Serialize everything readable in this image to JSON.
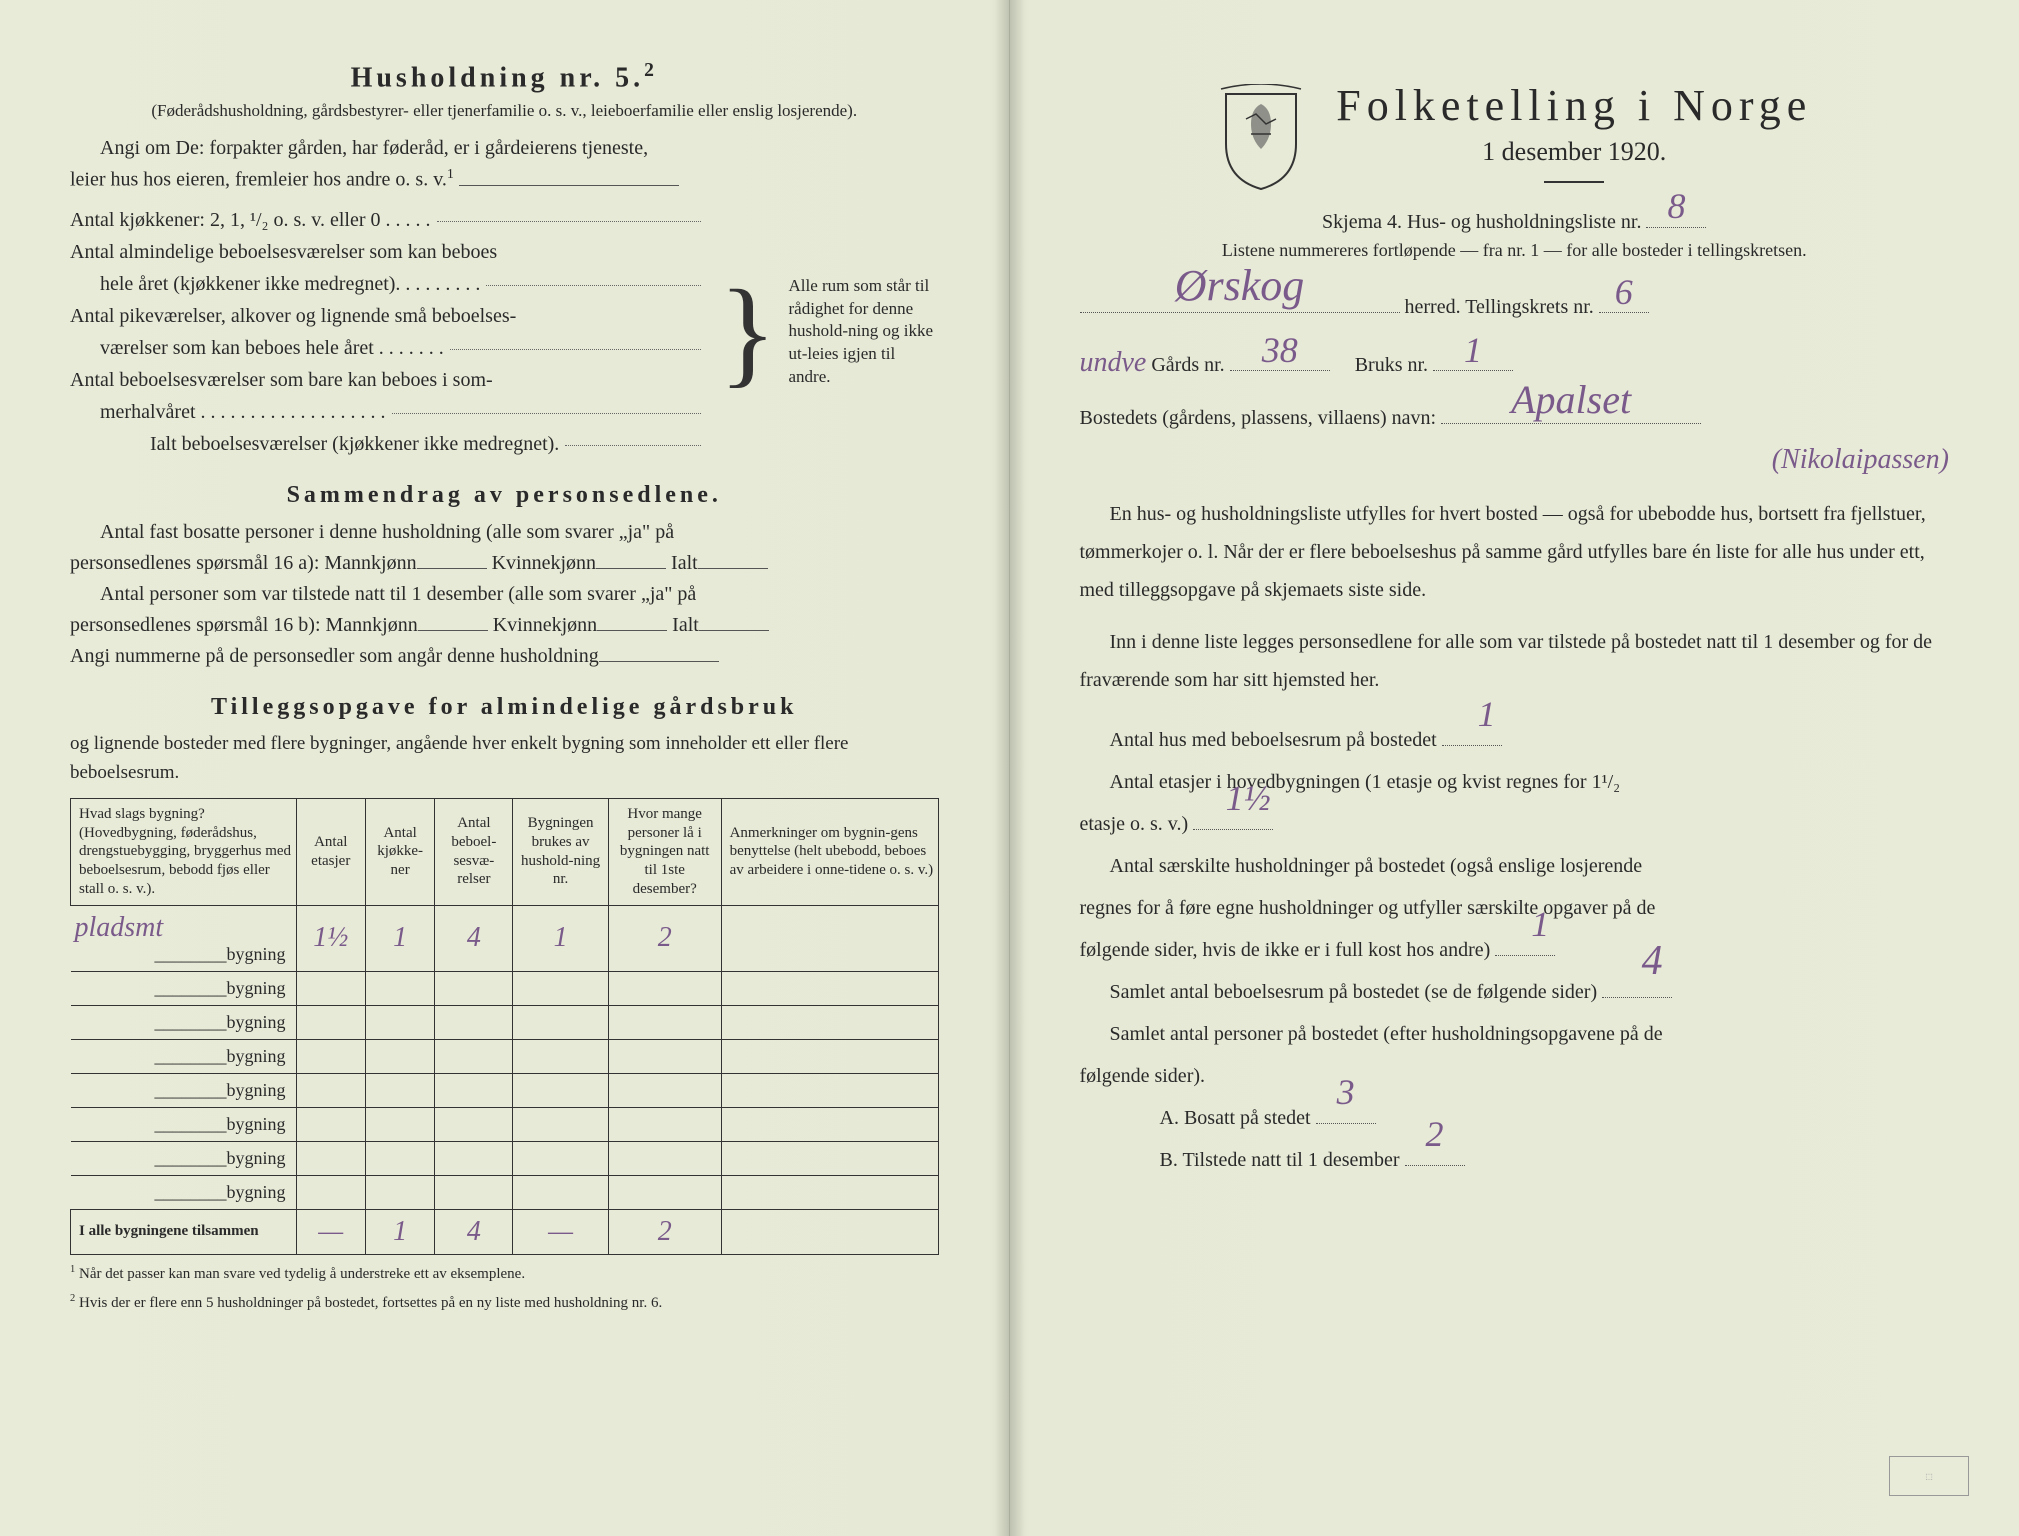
{
  "left": {
    "heading": "Husholdning nr. 5.",
    "heading_sup": "2",
    "sub1": "(Føderådshusholdning, gårdsbestyrer- eller tjenerfamilie o. s. v., leieboerfamilie eller enslig losjerende).",
    "para1a": "Angi om De: forpakter gården, har føderåd, er i gårdeierens tjeneste,",
    "para1b": "leier hus hos eieren, fremleier hos andre o. s. v.",
    "para1b_sup": "1",
    "kitchens": "Antal kjøkkener: 2, 1, ¹/₂ o. s. v. eller 0 . . . . .",
    "rooms1a": "Antal almindelige beboelsesværelser som kan beboes",
    "rooms1b": "hele året (kjøkkener ikke medregnet). . . . . . . . .",
    "rooms2a": "Antal pikeværelser, alkover og lignende små beboelses-",
    "rooms2b": "værelser som kan beboes hele året . . . . . . .",
    "rooms3a": "Antal beboelsesværelser som bare kan beboes i som-",
    "rooms3b": "merhalvåret . . . . . . . . . . . . . . . . . . .",
    "ialt": "Ialt beboelsesværelser (kjøkkener ikke medregnet).",
    "brace_text": "Alle rum som står til rådighet for denne hushold-ning og ikke ut-leies igjen til andre.",
    "section2_title": "Sammendrag av personsedlene.",
    "s2_l1": "Antal fast bosatte personer i denne husholdning (alle som svarer „ja\" på",
    "s2_l2a": "personsedlenes spørsmål 16 a): Mannkjønn",
    "s2_l2b": "Kvinnekjønn",
    "s2_l2c": "Ialt",
    "s2_l3": "Antal personer som var tilstede natt til 1 desember (alle som svarer „ja\" på",
    "s2_l4a": "personsedlenes spørsmål 16 b): Mannkjønn",
    "s2_l5": "Angi nummerne på de personsedler som angår denne husholdning",
    "section3_title": "Tilleggsopgave for almindelige gårdsbruk",
    "s3_sub": "og lignende bosteder med flere bygninger, angående hver enkelt bygning som inneholder ett eller flere beboelsesrum.",
    "table": {
      "headers": [
        "Hvad slags bygning?\n(Hovedbygning, føderådshus, drengstuebygging, bryggerhus med beboelsesrum, bebodd fjøs eller stall o. s. v.).",
        "Antal etasjer",
        "Antal kjøkke-ner",
        "Antal beboel-sesvæ-relser",
        "Bygningen brukes av hushold-ning nr.",
        "Hvor mange personer lå i bygningen natt til 1ste desember?",
        "Anmerkninger om bygnin-gens benyttelse (helt ubebodd, beboes av arbeidere i onne-tidene o. s. v.)"
      ],
      "row_label_prefix": "pladsmt",
      "bygning_label": "bygning",
      "rows": [
        {
          "prefix_hand": "pladsmt",
          "c1": "1½",
          "c2": "1",
          "c3": "4",
          "c4": "1",
          "c5": "2",
          "c6": ""
        },
        {
          "c1": "",
          "c2": "",
          "c3": "",
          "c4": "",
          "c5": "",
          "c6": ""
        },
        {
          "c1": "",
          "c2": "",
          "c3": "",
          "c4": "",
          "c5": "",
          "c6": ""
        },
        {
          "c1": "",
          "c2": "",
          "c3": "",
          "c4": "",
          "c5": "",
          "c6": ""
        },
        {
          "c1": "",
          "c2": "",
          "c3": "",
          "c4": "",
          "c5": "",
          "c6": ""
        },
        {
          "c1": "",
          "c2": "",
          "c3": "",
          "c4": "",
          "c5": "",
          "c6": ""
        },
        {
          "c1": "",
          "c2": "",
          "c3": "",
          "c4": "",
          "c5": "",
          "c6": ""
        },
        {
          "c1": "",
          "c2": "",
          "c3": "",
          "c4": "",
          "c5": "",
          "c6": ""
        }
      ],
      "total_label": "I alle bygningene tilsammen",
      "total": {
        "c1": "—",
        "c2": "1",
        "c3": "4",
        "c4": "—",
        "c5": "2",
        "c6": ""
      }
    },
    "footnote1": "Når det passer kan man svare ved tydelig å understreke ett av eksemplene.",
    "footnote2": "Hvis der er flere enn 5 husholdninger på bostedet, fortsettes på en ny liste med husholdning nr. 6."
  },
  "right": {
    "title": "Folketelling i Norge",
    "date": "1 desember 1920.",
    "skjema_line": "Skjema 4.  Hus- og husholdningsliste nr.",
    "skjema_nr": "8",
    "listene": "Listene nummereres fortløpende — fra nr. 1 — for alle bosteder i tellingskretsen.",
    "herred_hand": "Ørskog",
    "herred_label": "herred.  Tellingskrets nr.",
    "krets_nr": "6",
    "gards_prefix_hand": "undve",
    "gards_label": "Gårds nr.",
    "gards_nr": "38",
    "bruks_label": "Bruks nr.",
    "bruks_nr": "1",
    "bosted_label": "Bostedets (gårdens, plassens, villaens) navn:",
    "bosted_hand": "Apalset",
    "bosted_hand2": "(Nikolaipassen)",
    "para1": "En hus- og husholdningsliste utfylles for hvert bosted — også for ubebodde hus, bortsett fra fjellstuer, tømmerkojer o. l.  Når der er flere beboelseshus på samme gård utfylles bare én liste for alle hus under ett, med tilleggsopgave på skjemaets siste side.",
    "para2": "Inn i denne liste legges personsedlene for alle som var tilstede på bostedet natt til 1 desember og for de fraværende som har sitt hjemsted her.",
    "q1": "Antal hus med beboelsesrum på bostedet",
    "q1_ans": "1",
    "q2a": "Antal etasjer i hovedbygningen (1 etasje og kvist regnes for 1¹/₂",
    "q2b": "etasje o. s. v.)",
    "q2_ans": "1½",
    "q3a": "Antal særskilte husholdninger på bostedet (også enslige losjerende",
    "q3b": "regnes for å føre egne husholdninger og utfyller særskilte opgaver på de",
    "q3c": "følgende sider, hvis de ikke er i full kost hos andre)",
    "q3_ans": "1",
    "q4": "Samlet antal beboelsesrum på bostedet (se de følgende sider)",
    "q4_ans": "4",
    "q5a": "Samlet antal personer på bostedet (efter husholdningsopgavene på de",
    "q5b": "følgende sider).",
    "q5_A": "A.  Bosatt på stedet",
    "q5_A_ans": "3",
    "q5_B": "B.  Tilstede natt til 1 desember",
    "q5_B_ans": "2"
  },
  "colors": {
    "paper": "#e8ebd8",
    "ink": "#2a2a2a",
    "handwriting": "#7a5a8a"
  }
}
